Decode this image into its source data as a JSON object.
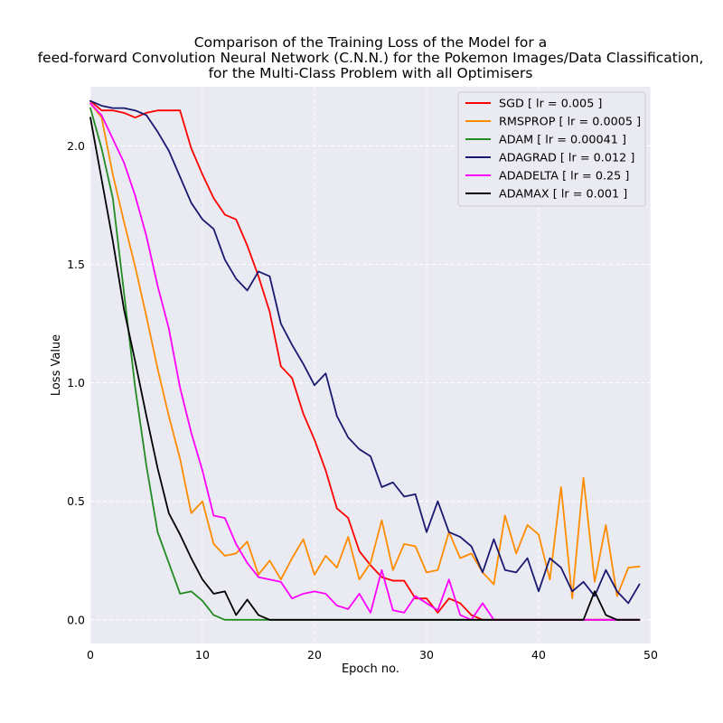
{
  "chart_data": {
    "type": "line",
    "title": [
      "Comparison of the Training Loss of the Model for a",
      "feed-forward Convolution Neural Network (C.N.N.) for the Pokemon Images/Data Classification,",
      "for the Multi-Class Problem with all Optimisers"
    ],
    "xlabel": "Epoch no.",
    "ylabel": "Loss Value",
    "xlim": [
      0,
      50
    ],
    "ylim": [
      -0.1,
      2.25
    ],
    "xticks": [
      0,
      10,
      20,
      30,
      40,
      50
    ],
    "yticks": [
      0.0,
      0.5,
      1.0,
      1.5,
      2.0
    ],
    "xtick_labels": [
      "0",
      "10",
      "20",
      "30",
      "40",
      "50"
    ],
    "ytick_labels": [
      "0.0",
      "0.5",
      "1.0",
      "1.5",
      "2.0"
    ],
    "grid": true,
    "legend_position": "top-right",
    "x": [
      0,
      1,
      2,
      3,
      4,
      5,
      6,
      7,
      8,
      9,
      10,
      11,
      12,
      13,
      14,
      15,
      16,
      17,
      18,
      19,
      20,
      21,
      22,
      23,
      24,
      25,
      26,
      27,
      28,
      29,
      30,
      31,
      32,
      33,
      34,
      35,
      36,
      37,
      38,
      39,
      40,
      41,
      42,
      43,
      44,
      45,
      46,
      47,
      48,
      49
    ],
    "series": [
      {
        "name": "SGD [ lr = 0.005 ]",
        "color": "#ff0000",
        "values": [
          2.19,
          2.15,
          2.15,
          2.14,
          2.12,
          2.14,
          2.15,
          2.15,
          2.15,
          1.99,
          1.88,
          1.78,
          1.71,
          1.69,
          1.58,
          1.45,
          1.3,
          1.07,
          1.02,
          0.87,
          0.76,
          0.63,
          0.47,
          0.43,
          0.29,
          0.23,
          0.18,
          0.165,
          0.165,
          0.09,
          0.09,
          0.03,
          0.09,
          0.07,
          0.02,
          0.0,
          0.0,
          0.0,
          0.0,
          0.0,
          0.0,
          0.0,
          0.0,
          0.0,
          0.0,
          0.0,
          0.0,
          0.0,
          0.0,
          0.0
        ]
      },
      {
        "name": "RMSPROP [ lr = 0.0005 ]",
        "color": "#ff8c00",
        "values": [
          2.18,
          2.12,
          1.88,
          1.68,
          1.49,
          1.28,
          1.06,
          0.86,
          0.68,
          0.45,
          0.5,
          0.32,
          0.27,
          0.28,
          0.33,
          0.19,
          0.25,
          0.17,
          0.26,
          0.34,
          0.19,
          0.27,
          0.22,
          0.35,
          0.17,
          0.24,
          0.42,
          0.21,
          0.32,
          0.31,
          0.2,
          0.21,
          0.37,
          0.26,
          0.28,
          0.2,
          0.15,
          0.44,
          0.28,
          0.4,
          0.36,
          0.17,
          0.56,
          0.09,
          0.6,
          0.16,
          0.4,
          0.1,
          0.22,
          0.225
        ]
      },
      {
        "name": "ADAM [ lr = 0.00041 ]",
        "color": "#228b22",
        "values": [
          2.16,
          1.99,
          1.78,
          1.38,
          0.98,
          0.65,
          0.37,
          0.24,
          0.11,
          0.12,
          0.08,
          0.02,
          0.0,
          0.0,
          0.0,
          0.0,
          0.0,
          0.0,
          0.0,
          0.0,
          0.0,
          0.0,
          0.0,
          0.0,
          0.0,
          0.0,
          0.0,
          0.0,
          0.0,
          0.0,
          0.0,
          0.0,
          0.0,
          0.0,
          0.0,
          0.0,
          0.0,
          0.0,
          0.0,
          0.0,
          0.0,
          0.0,
          0.0,
          0.0,
          0.0,
          0.0,
          0.0,
          0.0,
          0.0,
          0.0
        ]
      },
      {
        "name": "ADAGRAD [ lr = 0.012 ]",
        "color": "#191970",
        "values": [
          2.19,
          2.17,
          2.16,
          2.16,
          2.15,
          2.13,
          2.06,
          1.98,
          1.87,
          1.76,
          1.69,
          1.65,
          1.52,
          1.44,
          1.39,
          1.47,
          1.45,
          1.25,
          1.16,
          1.08,
          0.99,
          1.04,
          0.86,
          0.77,
          0.72,
          0.69,
          0.56,
          0.58,
          0.52,
          0.53,
          0.37,
          0.5,
          0.37,
          0.35,
          0.31,
          0.2,
          0.34,
          0.21,
          0.2,
          0.26,
          0.12,
          0.26,
          0.22,
          0.12,
          0.16,
          0.1,
          0.21,
          0.12,
          0.07,
          0.15
        ]
      },
      {
        "name": "ADADELTA [ lr = 0.25 ]",
        "color": "#ff00ff",
        "values": [
          2.18,
          2.13,
          2.03,
          1.93,
          1.79,
          1.62,
          1.41,
          1.23,
          0.98,
          0.79,
          0.63,
          0.44,
          0.43,
          0.32,
          0.24,
          0.18,
          0.17,
          0.16,
          0.09,
          0.11,
          0.12,
          0.11,
          0.06,
          0.045,
          0.11,
          0.03,
          0.21,
          0.04,
          0.03,
          0.1,
          0.07,
          0.04,
          0.17,
          0.02,
          0.0,
          0.07,
          0.0,
          0.0,
          0.0,
          0.0,
          0.0,
          0.0,
          0.0,
          0.0,
          0.0,
          0.0,
          0.0,
          0.0,
          0.0,
          0.0
        ]
      },
      {
        "name": "ADAMAX [ lr = 0.001 ]",
        "color": "#000000",
        "values": [
          2.12,
          1.86,
          1.6,
          1.31,
          1.09,
          0.86,
          0.64,
          0.45,
          0.36,
          0.26,
          0.17,
          0.11,
          0.12,
          0.02,
          0.085,
          0.02,
          0.0,
          0.0,
          0.0,
          0.0,
          0.0,
          0.0,
          0.0,
          0.0,
          0.0,
          0.0,
          0.0,
          0.0,
          0.0,
          0.0,
          0.0,
          0.0,
          0.0,
          0.0,
          0.0,
          0.0,
          0.0,
          0.0,
          0.0,
          0.0,
          0.0,
          0.0,
          0.0,
          0.0,
          0.0,
          0.12,
          0.02,
          0.0,
          0.0,
          0.0
        ]
      }
    ]
  }
}
